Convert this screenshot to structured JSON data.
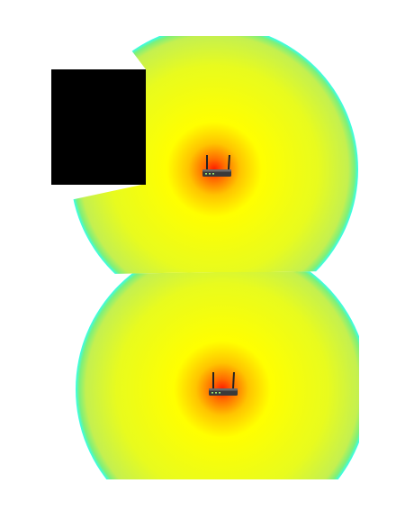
{
  "view": {
    "type": "wifi-signal-heatmap",
    "background": "#ffffff"
  },
  "gradient": {
    "colors": {
      "core": "#ff1a00",
      "hot": "#ff6a00",
      "warm": "#ffc400",
      "strong": "#ffff00",
      "medium": "#e8fb1e",
      "weak": "#c4f050",
      "fringe": "#7df07a",
      "edge": "#33ffee"
    }
  },
  "obstacle": {
    "name": "wall-block",
    "color": "#000000"
  },
  "routers": [
    {
      "name": "router-top",
      "icon": "router-icon"
    },
    {
      "name": "router-bottom",
      "icon": "router-icon"
    }
  ]
}
